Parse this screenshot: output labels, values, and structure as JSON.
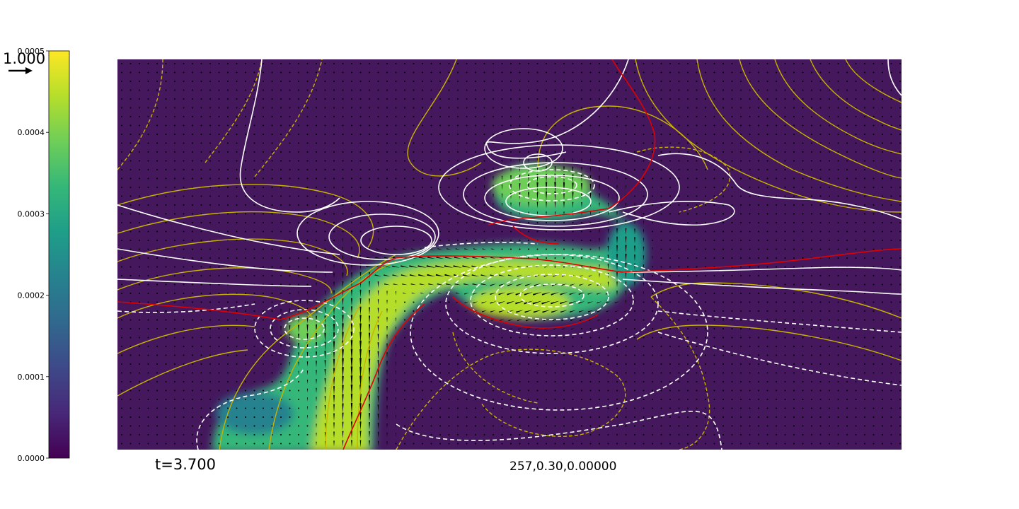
{
  "figure": {
    "arrow_scale_label": "1.000",
    "time_label": "t=3.700",
    "run_label": "257,0.30,0.00000"
  },
  "chart_data": {
    "type": "heatmap",
    "colormap": "viridis",
    "colorbar": {
      "range": [
        0.0,
        0.0005
      ],
      "ticks": [
        0.0,
        0.0001,
        0.0002,
        0.0003,
        0.0004,
        0.0005
      ],
      "tick_labels": [
        "0.0000",
        "0.0001",
        "0.0002",
        "0.0003",
        "0.0004",
        "0.0005"
      ]
    },
    "field_background_color": "#45185e",
    "overlays": {
      "vector_arrows_color": "#000000",
      "contour_set_1_color": "#ffffff",
      "contour_set_2_color": "#c8b400",
      "interface_line_color": "#e00000",
      "negative_contours_style": "dashed"
    },
    "title": "",
    "xlabel": "",
    "ylabel": ""
  },
  "colors": {
    "viridis_stops": [
      "#440154",
      "#482878",
      "#3e4989",
      "#31688e",
      "#26828e",
      "#1f9e89",
      "#35b779",
      "#6ece58",
      "#b5de2b",
      "#fde725"
    ]
  }
}
